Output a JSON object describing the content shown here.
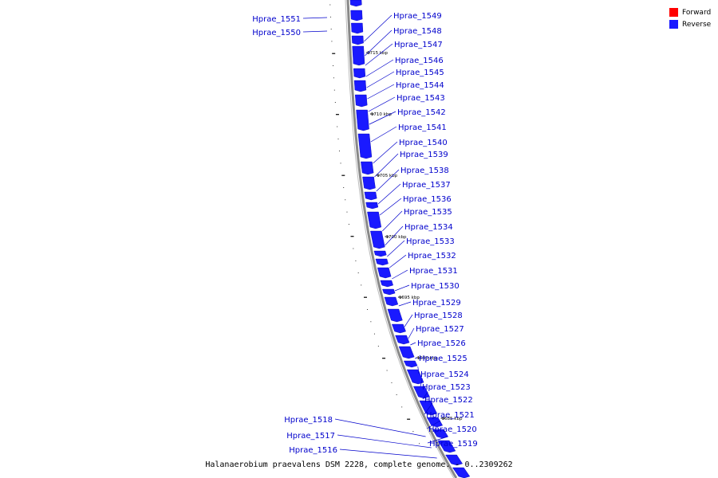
{
  "legend": {
    "forward_label": "Forward",
    "reverse_label": "Reverse",
    "forward_color": "#ff0000",
    "reverse_color": "#1a1aff"
  },
  "caption": "Halanaerobium praevalens DSM 2228, complete genome. - 0..2309262",
  "ticks_kbp": [
    "1715 kbp",
    "1710 kbp",
    "1705 kbp",
    "1700 kbp",
    "1695 kbp",
    "1690 kbp",
    "1685 kbp"
  ],
  "genes": {
    "right": [
      "Hprae_1549",
      "Hprae_1548",
      "Hprae_1547",
      "Hprae_1546",
      "Hprae_1545",
      "Hprae_1544",
      "Hprae_1543",
      "Hprae_1542",
      "Hprae_1541",
      "Hprae_1540",
      "Hprae_1539",
      "Hprae_1538",
      "Hprae_1537",
      "Hprae_1536",
      "Hprae_1535",
      "Hprae_1534",
      "Hprae_1533",
      "Hprae_1532",
      "Hprae_1531",
      "Hprae_1530",
      "Hprae_1529",
      "Hprae_1528",
      "Hprae_1527",
      "Hprae_1526",
      "Hprae_1525",
      "Hprae_1524",
      "Hprae_1523",
      "Hprae_1522",
      "Hprae_1521",
      "Hprae_1520",
      "Hprae_1519"
    ],
    "left_top": [
      "Hprae_1551",
      "Hprae_1550"
    ],
    "left_bottom": [
      "Hprae_1518",
      "Hprae_1517",
      "Hprae_1516"
    ]
  },
  "colors": {
    "label": "#0000cc",
    "gene": "#1a1aff",
    "backbone": "#888888"
  }
}
